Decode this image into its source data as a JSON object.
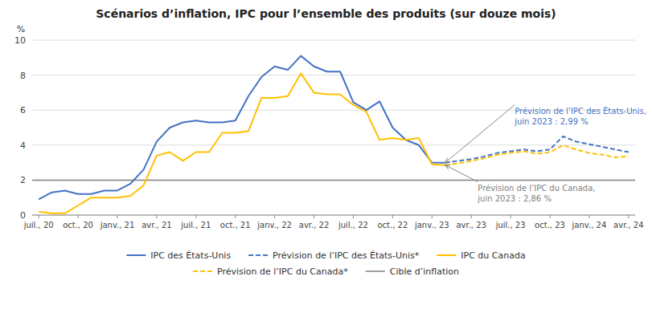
{
  "chart_data": {
    "type": "line",
    "title": "Scénarios d’inflation, IPC pour l’ensemble des produits (sur douze mois)",
    "y_label": "%",
    "categories": [
      "juil., 20",
      null,
      null,
      "oct., 20",
      null,
      null,
      "janv., 21",
      null,
      null,
      "avr., 21",
      null,
      null,
      "juil., 21",
      null,
      null,
      "oct., 21",
      null,
      null,
      "janv., 22",
      null,
      null,
      "avr., 22",
      null,
      null,
      "juil., 22",
      null,
      null,
      "oct., 22",
      null,
      null,
      "janv., 23",
      null,
      null,
      "avr., 23",
      null,
      null,
      "juil., 23",
      null,
      null,
      "oct., 23",
      null,
      null,
      "janv., 24",
      null,
      null,
      "avr., 24"
    ],
    "xlim": [
      -0.5,
      45.5
    ],
    "ylim": [
      0,
      10
    ],
    "yticks": [
      0,
      2,
      4,
      6,
      8,
      10
    ],
    "grid": true,
    "legend": "bottom",
    "series": [
      {
        "name": "IPC des États-Unis",
        "color": "#4472c4",
        "line_style": "solid",
        "values": [
          0.9,
          1.3,
          1.4,
          1.2,
          1.2,
          1.4,
          1.4,
          1.8,
          2.6,
          4.2,
          5.0,
          5.3,
          5.4,
          5.3,
          5.3,
          5.4,
          6.8,
          7.9,
          8.5,
          8.3,
          9.1,
          8.5,
          8.2,
          8.2,
          6.45,
          6.0,
          6.5,
          5.0,
          4.3,
          4.0,
          3.0,
          2.99,
          null,
          null,
          null,
          null,
          null,
          null,
          null,
          null,
          null,
          null,
          null,
          null,
          null,
          null
        ]
      },
      {
        "name": "Prévision de l’IPC des États-Unis*",
        "color": "#4472c4",
        "line_style": "dashed",
        "values": [
          null,
          null,
          null,
          null,
          null,
          null,
          null,
          null,
          null,
          null,
          null,
          null,
          null,
          null,
          null,
          null,
          null,
          null,
          null,
          null,
          null,
          null,
          null,
          null,
          null,
          null,
          null,
          null,
          null,
          null,
          null,
          2.99,
          3.1,
          3.2,
          3.35,
          3.55,
          3.65,
          3.75,
          3.65,
          3.75,
          4.5,
          4.2,
          4.05,
          3.9,
          3.75,
          3.6
        ]
      },
      {
        "name": "IPC du Canada",
        "color": "#ffc000",
        "line_style": "solid",
        "values": [
          0.2,
          0.1,
          0.1,
          0.55,
          1.0,
          1.0,
          1.0,
          1.1,
          1.7,
          3.4,
          3.6,
          3.1,
          3.6,
          3.6,
          4.7,
          4.7,
          4.8,
          6.7,
          6.7,
          6.8,
          8.1,
          7.0,
          6.9,
          6.9,
          6.3,
          5.9,
          4.3,
          4.4,
          4.3,
          4.4,
          2.9,
          2.86,
          null,
          null,
          null,
          null,
          null,
          null,
          null,
          null,
          null,
          null,
          null,
          null,
          null,
          null
        ]
      },
      {
        "name": "Prévision de l’IPC du Canada*",
        "color": "#ffc000",
        "line_style": "dashed",
        "values": [
          null,
          null,
          null,
          null,
          null,
          null,
          null,
          null,
          null,
          null,
          null,
          null,
          null,
          null,
          null,
          null,
          null,
          null,
          null,
          null,
          null,
          null,
          null,
          null,
          null,
          null,
          null,
          null,
          null,
          null,
          null,
          2.86,
          2.95,
          3.1,
          3.25,
          3.45,
          3.55,
          3.65,
          3.5,
          3.6,
          4.0,
          3.75,
          3.55,
          3.45,
          3.3,
          3.35
        ]
      },
      {
        "name": "Cible d’inflation",
        "color": "#7f7f7f",
        "type": "hline",
        "line_style": "solid",
        "value": 2.0
      }
    ],
    "annotations": [
      {
        "text": "Prévision de l’IPC des États-Unis,\njuin 2023 : 2,99 %",
        "x": 31,
        "y": 2.99,
        "text_x": 37.0,
        "text_y": 6.3,
        "color": "#4472c4"
      },
      {
        "text": "Prévision de l’IPC du Canada,\njuin 2023 : 2,86 %",
        "x": 31,
        "y": 2.86,
        "text_x": 33.5,
        "text_y": 1.9,
        "color": "#808080"
      }
    ]
  }
}
